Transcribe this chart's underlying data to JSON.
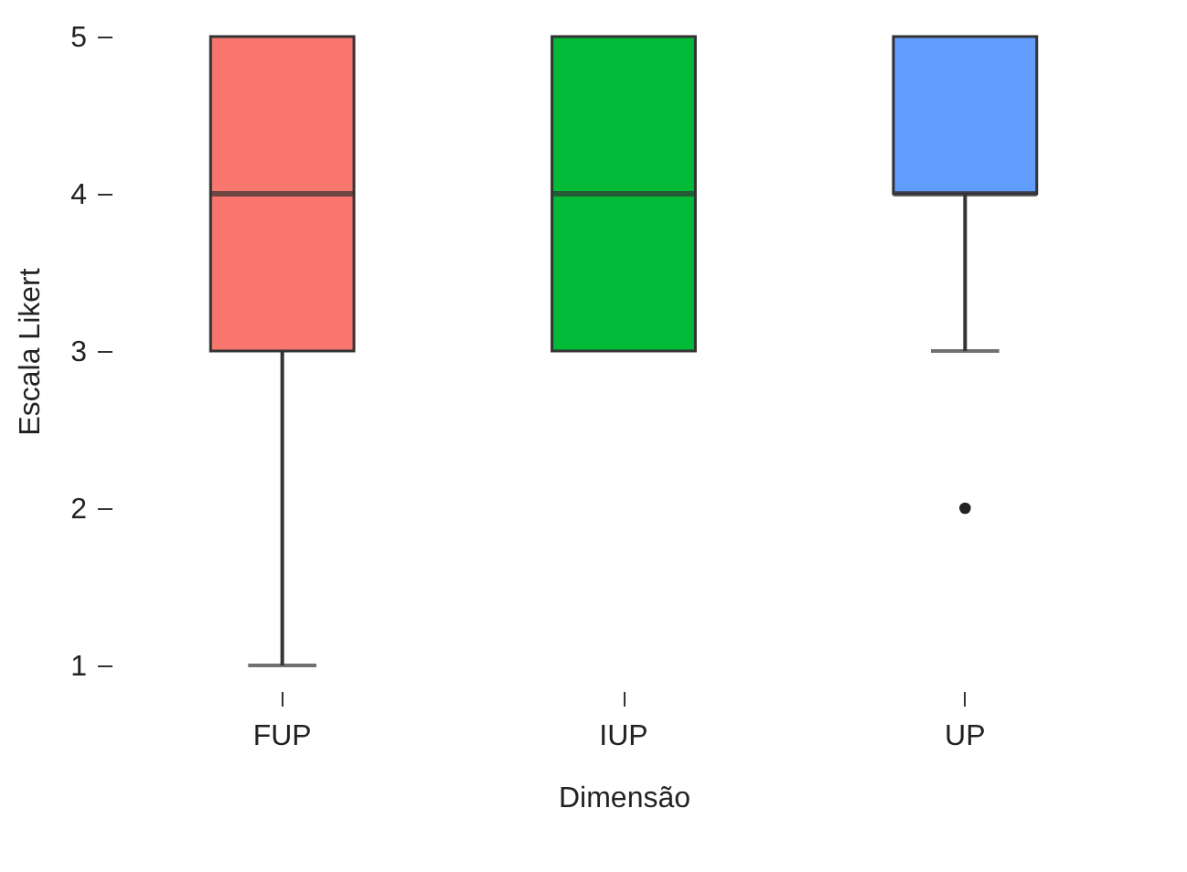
{
  "chart_data": {
    "type": "box",
    "xlabel": "Dimensão",
    "ylabel": "Escala Likert",
    "categories": [
      "FUP",
      "IUP",
      "UP"
    ],
    "colors": [
      "#f8766d",
      "#00ba38",
      "#619cff"
    ],
    "boxes": [
      {
        "low": 1,
        "q1": 3,
        "median": 4,
        "q3": 5,
        "high": 5
      },
      {
        "low": 3,
        "q1": 3,
        "median": 4,
        "q3": 5,
        "high": 5
      },
      {
        "low": 3,
        "q1": 4,
        "median": 4,
        "q3": 5,
        "high": 5,
        "outliers": [
          2
        ]
      }
    ],
    "ylim": [
      1,
      5
    ],
    "yticks": [
      1,
      2,
      3,
      4,
      5
    ]
  }
}
